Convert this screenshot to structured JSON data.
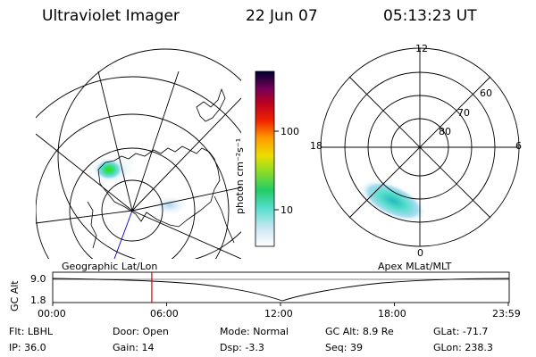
{
  "header": {
    "instrument": "Ultraviolet Imager",
    "date": "22 Jun 07",
    "time": "05:13:23 UT"
  },
  "colorbar": {
    "unit_label": "photon cm⁻²s⁻¹",
    "ticks": [
      "100",
      "10"
    ]
  },
  "left_map": {
    "label": "Geographic Lat/Lon"
  },
  "right_map": {
    "label": "Apex MLat/MLT",
    "mlt_labels": {
      "top": "12",
      "left": "18",
      "right": "6",
      "bottom": "0"
    },
    "lat_labels": [
      "60",
      "70",
      "80"
    ]
  },
  "timeline": {
    "axis_label": "GC Alt",
    "y_ticks": [
      "9.0",
      "1.8"
    ],
    "x_ticks": [
      "00:00",
      "06:00",
      "12:00",
      "18:00",
      "23:59"
    ],
    "current_time_hours": 5.22
  },
  "status": {
    "row1": [
      {
        "label": "Flt:",
        "value": "LBHL"
      },
      {
        "label": "Door:",
        "value": "Open"
      },
      {
        "label": "Mode:",
        "value": "Normal"
      },
      {
        "label": "GC Alt:",
        "value": "8.9 Re"
      },
      {
        "label": "GLat:",
        "value": "-71.7"
      }
    ],
    "row2": [
      {
        "label": "IP:",
        "value": "36.0"
      },
      {
        "label": "Gain:",
        "value": "14"
      },
      {
        "label": "Dsp:",
        "value": "-3.3"
      },
      {
        "label": "Seq:",
        "value": "39"
      },
      {
        "label": "GLon:",
        "value": "238.3"
      }
    ]
  },
  "colors": {
    "marker": "#d00000",
    "nadir_line": "#0000cc"
  }
}
